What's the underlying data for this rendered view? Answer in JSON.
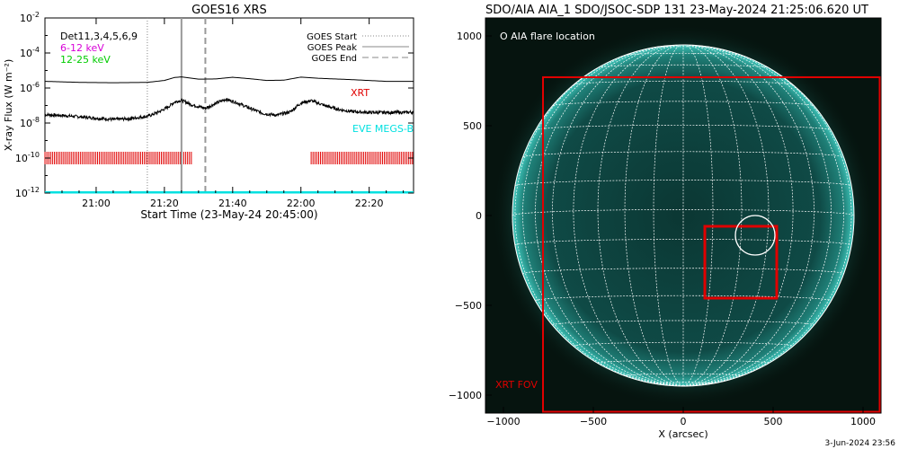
{
  "chart_data": [
    {
      "type": "line",
      "title": "GOES16 XRS",
      "xlabel": "Start Time (23-May-24 20:45:00)",
      "ylabel": "X-ray Flux (W m⁻²)",
      "yscale": "log",
      "ylim": [
        1e-12,
        0.01
      ],
      "xlim_minutes": [
        0,
        108
      ],
      "x_ticks": [
        {
          "label": "21:00",
          "minute": 15
        },
        {
          "label": "21:20",
          "minute": 35
        },
        {
          "label": "21:40",
          "minute": 55
        },
        {
          "label": "22:00",
          "minute": 75
        },
        {
          "label": "22:20",
          "minute": 95
        }
      ],
      "y_ticks": [
        {
          "base": "10",
          "exp": "-2",
          "value": 0.01
        },
        {
          "base": "10",
          "exp": "-4",
          "value": 0.0001
        },
        {
          "base": "10",
          "exp": "-6",
          "value": 1e-06
        },
        {
          "base": "10",
          "exp": "-8",
          "value": 1e-08
        },
        {
          "base": "10",
          "exp": "-10",
          "value": 1e-10
        },
        {
          "base": "10",
          "exp": "-12",
          "value": 1e-12
        }
      ],
      "legend_left": [
        {
          "text": "Det11,3,4,5,6,9",
          "color": "#000000"
        },
        {
          "text": "6-12 keV",
          "color": "#d800d8"
        },
        {
          "text": "12-25 keV",
          "color": "#00cc00"
        }
      ],
      "legend_right": [
        {
          "text": "GOES Start",
          "style": "dotted"
        },
        {
          "text": "GOES Peak",
          "style": "solid"
        },
        {
          "text": "GOES End",
          "style": "dashed"
        }
      ],
      "markers": [
        {
          "name": "GOES Start",
          "minute": 30,
          "style": "dotted"
        },
        {
          "name": "GOES Peak",
          "minute": 40,
          "style": "solid"
        },
        {
          "name": "GOES End",
          "minute": 47,
          "style": "dashed"
        }
      ],
      "series": [
        {
          "name": "long channel",
          "color": "#000000",
          "noisy": false,
          "x": [
            0,
            10,
            20,
            30,
            35,
            38,
            40,
            45,
            50,
            55,
            60,
            65,
            70,
            75,
            80,
            90,
            100,
            108
          ],
          "y": [
            2.4e-06,
            2.1e-06,
            2e-06,
            2.1e-06,
            2.7e-06,
            4e-06,
            4.3e-06,
            3.2e-06,
            3.3e-06,
            4.1e-06,
            3.4e-06,
            2.7e-06,
            2.8e-06,
            4.2e-06,
            3.6e-06,
            3e-06,
            2.4e-06,
            2.4e-06
          ]
        },
        {
          "name": "short channel",
          "color": "#000000",
          "noisy": true,
          "x": [
            0,
            5,
            10,
            15,
            20,
            25,
            30,
            33,
            36,
            38,
            40,
            43,
            47,
            50,
            53,
            56,
            60,
            64,
            68,
            72,
            75,
            78,
            82,
            86,
            90,
            95,
            100,
            105,
            108
          ],
          "y": [
            3e-08,
            2.7e-08,
            2.3e-08,
            1.9e-08,
            1.6e-08,
            1.8e-08,
            2.4e-08,
            4e-08,
            8e-08,
            1.6e-07,
            2e-07,
            1.1e-07,
            7e-08,
            1.3e-07,
            2.3e-07,
            1.5e-07,
            7e-08,
            3.5e-08,
            2.8e-08,
            4.5e-08,
            1.4e-07,
            1.9e-07,
            1e-07,
            6e-08,
            4.5e-08,
            4e-08,
            4e-08,
            4e-08,
            4.2e-08
          ]
        },
        {
          "name": "EVE MEGS-B",
          "color": "#00e0e0",
          "noisy": false,
          "x": [
            0,
            108
          ],
          "y": [
            1.1e-12,
            1.1e-12
          ]
        }
      ],
      "annotations": [
        {
          "text": "XRT",
          "color": "#e00000"
        },
        {
          "text": "EVE MEGS-B",
          "color": "#00e0e0"
        }
      ],
      "xrt_coverage": {
        "color": "#e00000",
        "intervals_minutes": [
          [
            0,
            43
          ],
          [
            78,
            108
          ]
        ],
        "level": 1e-10
      }
    },
    {
      "type": "image",
      "title": "SDO/AIA AIA_1 SDO/JSOC-SDP 131 23-May-2024 21:25:06.620 UT",
      "xlabel": "X (arcsec)",
      "ylabel": "",
      "xlim": [
        -1100,
        1100
      ],
      "ylim": [
        -1100,
        1100
      ],
      "x_ticks": [
        -1000,
        -500,
        0,
        500,
        1000
      ],
      "y_ticks": [
        1000,
        500,
        0,
        -500,
        -1000
      ],
      "x_tick_labels": [
        "−1000",
        "−500",
        "0",
        "500",
        "1000"
      ],
      "y_tick_labels": [
        "1000",
        "500",
        "0",
        "−500",
        "−1000"
      ],
      "solar_radius_arcsec": 950,
      "grid_spacing_deg": 10,
      "colors": {
        "sun_disk": "#0f4a46",
        "limb": "#2fb3a8",
        "background": "#06140f",
        "grid": "#ffffff",
        "fov": "#e00000"
      },
      "flare_location": {
        "x": 400,
        "y": -110,
        "radius": 110
      },
      "flare_box": {
        "x0": 120,
        "x1": 520,
        "y0": -460,
        "y1": -60
      },
      "xrt_fov": {
        "x0": -780,
        "x1": 1100,
        "y0": -1100,
        "y1": 770
      },
      "legend_text": "O AIA flare location",
      "fov_label": "XRT FOV"
    }
  ],
  "footer": {
    "timestamp": "3-Jun-2024 23:56"
  }
}
